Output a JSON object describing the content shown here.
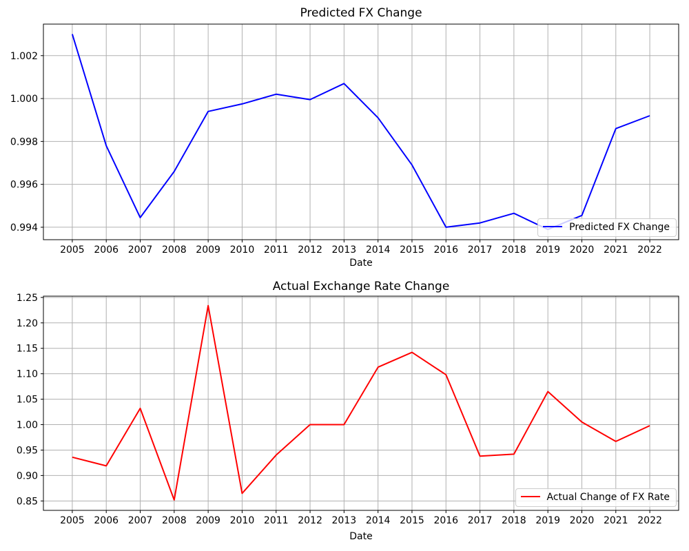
{
  "chart_data": [
    {
      "type": "line",
      "title": "Predicted FX Change",
      "xlabel": "Date",
      "ylabel": "",
      "legend_label": "Predicted FX Change",
      "legend_position": "lower right",
      "line_color": "#0000ff",
      "grid": true,
      "x": [
        2005,
        2006,
        2007,
        2008,
        2009,
        2010,
        2011,
        2012,
        2013,
        2014,
        2015,
        2016,
        2017,
        2018,
        2019,
        2020,
        2021,
        2022
      ],
      "xtick_labels": [
        "2005",
        "2006",
        "2007",
        "2008",
        "2009",
        "2010",
        "2011",
        "2012",
        "2013",
        "2014",
        "2015",
        "2016",
        "2017",
        "2018",
        "2019",
        "2020",
        "2021",
        "2022"
      ],
      "values": [
        1.003,
        0.9978,
        0.99445,
        0.9966,
        0.9994,
        0.99975,
        1.0002,
        0.99995,
        1.0007,
        0.9991,
        0.9969,
        0.994,
        0.9942,
        0.99465,
        0.9939,
        0.99455,
        0.9986,
        0.9992
      ],
      "xlim": [
        2004.15,
        2022.85
      ],
      "ylim": [
        0.99342,
        1.00347
      ],
      "yticks": [
        0.994,
        0.996,
        0.998,
        1.0,
        1.002
      ],
      "ytick_labels": [
        "0.994",
        "0.996",
        "0.998",
        "1.000",
        "1.002"
      ]
    },
    {
      "type": "line",
      "title": "Actual Exchange Rate Change",
      "xlabel": "Date",
      "ylabel": "",
      "legend_label": "Actual Change of FX Rate",
      "legend_position": "lower right",
      "line_color": "#ff0000",
      "grid": true,
      "x": [
        2005,
        2006,
        2007,
        2008,
        2009,
        2010,
        2011,
        2012,
        2013,
        2014,
        2015,
        2016,
        2017,
        2018,
        2019,
        2020,
        2021,
        2022
      ],
      "xtick_labels": [
        "2005",
        "2006",
        "2007",
        "2008",
        "2009",
        "2010",
        "2011",
        "2012",
        "2013",
        "2014",
        "2015",
        "2016",
        "2017",
        "2018",
        "2019",
        "2020",
        "2021",
        "2022"
      ],
      "values": [
        0.936,
        0.919,
        1.032,
        0.852,
        1.234,
        0.865,
        0.94,
        1.0,
        1.0,
        1.113,
        1.142,
        1.098,
        0.938,
        0.942,
        1.065,
        1.005,
        0.967,
        0.998
      ],
      "xlim": [
        2004.15,
        2022.85
      ],
      "ylim": [
        0.8315,
        1.2525
      ],
      "yticks": [
        0.85,
        0.9,
        0.95,
        1.0,
        1.05,
        1.1,
        1.15,
        1.2,
        1.25
      ],
      "ytick_labels": [
        "0.85",
        "0.90",
        "0.95",
        "1.00",
        "1.05",
        "1.10",
        "1.15",
        "1.20",
        "1.25"
      ]
    }
  ]
}
